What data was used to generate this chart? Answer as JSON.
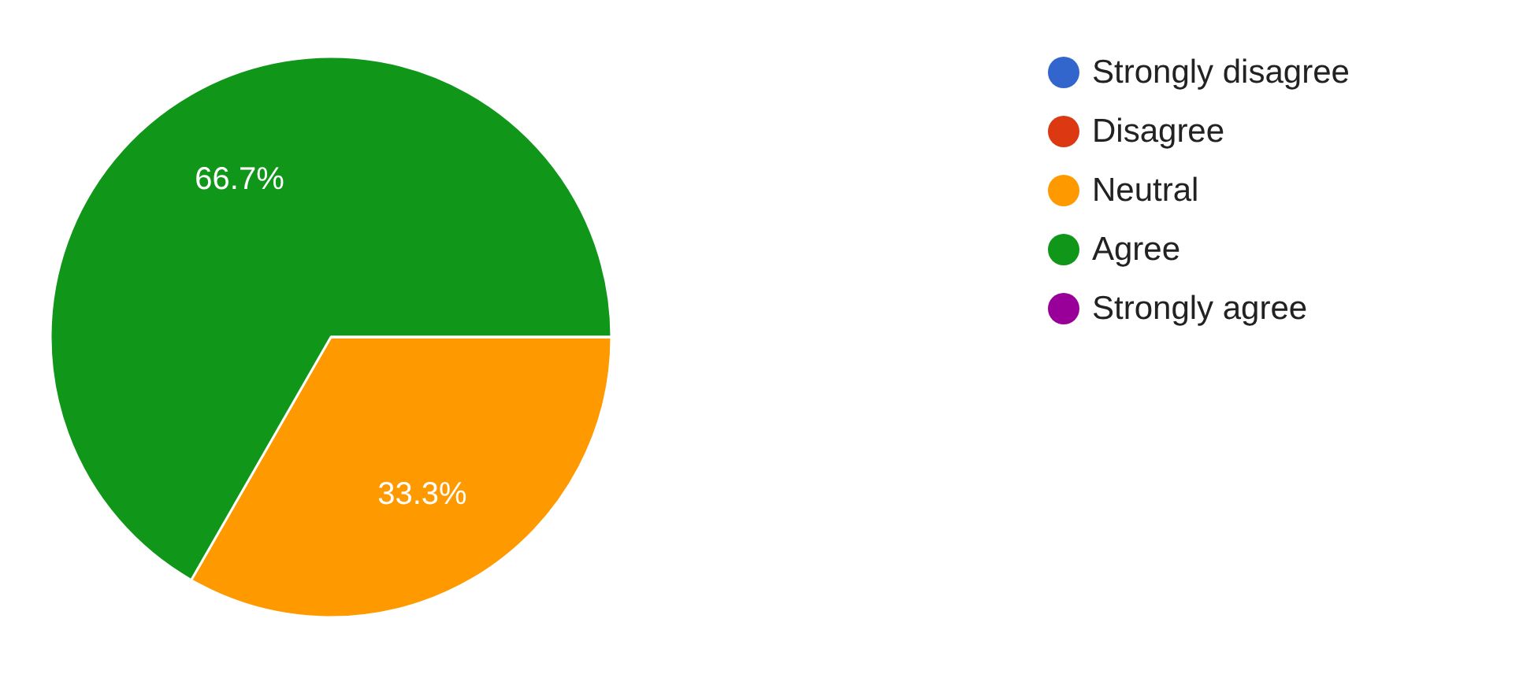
{
  "chart_data": {
    "type": "pie",
    "categories": [
      "Strongly disagree",
      "Disagree",
      "Neutral",
      "Agree",
      "Strongly agree"
    ],
    "values": [
      0,
      0,
      33.3,
      66.7,
      0
    ],
    "colors": [
      "#3366cc",
      "#dc3912",
      "#ff9900",
      "#109618",
      "#990099"
    ],
    "value_labels": [
      null,
      null,
      "33.3%",
      "66.7%",
      null
    ],
    "legend": "top right"
  }
}
